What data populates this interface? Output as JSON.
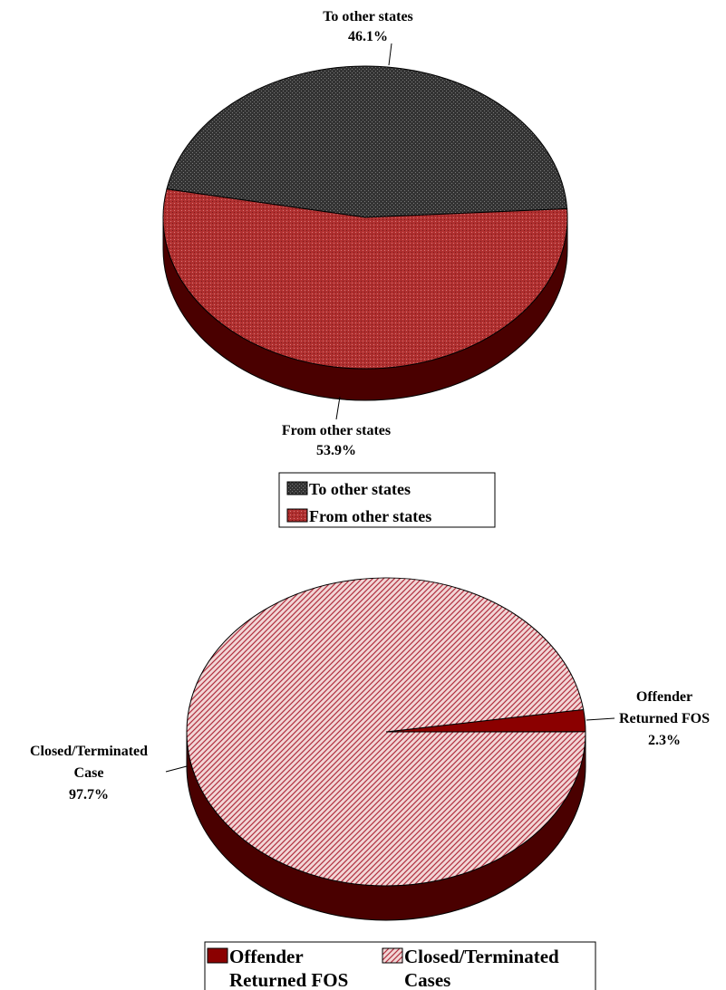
{
  "colors": {
    "top_slice_1": "#333333",
    "top_slice_2": "#b03030",
    "side_dark": "#4a0000",
    "bottom_slice_1": "#8b0000",
    "bottom_slice_2": "#f2d6d6",
    "bottom_hatch": "#b03040",
    "outline": "#000000"
  },
  "chart_data": [
    {
      "type": "pie",
      "slices": [
        {
          "label": "To other states",
          "value": 46.1,
          "value_label": "46.1%"
        },
        {
          "label": "From other states",
          "value": 53.9,
          "value_label": "53.9%"
        }
      ],
      "legend": {
        "placement": "bottom",
        "entries": [
          "To other states",
          "From other states"
        ]
      }
    },
    {
      "type": "pie",
      "slices": [
        {
          "label_lines": [
            "Offender",
            "Returned FOS"
          ],
          "value": 2.3,
          "value_label": "2.3%"
        },
        {
          "label_lines": [
            "Closed/Terminated",
            "Case"
          ],
          "value": 97.7,
          "value_label": "97.7%"
        }
      ],
      "legend": {
        "placement": "bottom",
        "entries": [
          {
            "lines": [
              "Offender",
              "Returned FOS"
            ]
          },
          {
            "lines": [
              "Closed/Terminated",
              "Cases"
            ]
          }
        ]
      }
    }
  ]
}
